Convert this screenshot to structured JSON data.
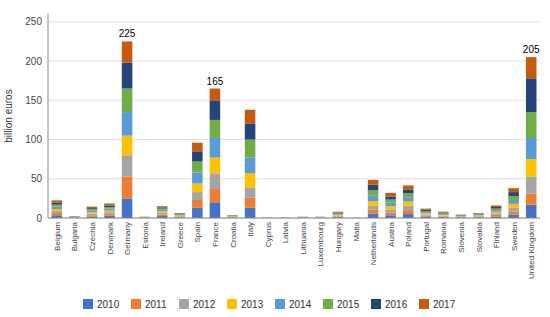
{
  "chart_data": {
    "type": "bar",
    "stacked": true,
    "grid": true,
    "legend": "bottom",
    "ylabel": "billion euros",
    "categories": [
      "Belgium",
      "Bulgaria",
      "Czechia",
      "Denmark",
      "Germany",
      "Estonia",
      "Ireland",
      "Greece",
      "Spain",
      "France",
      "Croatia",
      "Italy",
      "Cyprus",
      "Latvia",
      "Lithuania",
      "Luxembourg",
      "Hungary",
      "Malta",
      "Netherlands",
      "Austria",
      "Poland",
      "Portugal",
      "Romania",
      "Slovenia",
      "Slovakia",
      "Finland",
      "Sweden",
      "United Kingdom"
    ],
    "series": [
      {
        "name": "2010",
        "color": "#4472C4",
        "values": [
          3.5,
          0.3,
          2.0,
          3.0,
          25.0,
          0.2,
          2.5,
          0.8,
          13.0,
          20.0,
          0.4,
          13.0,
          0.1,
          0.1,
          0.2,
          0.2,
          1.0,
          0.05,
          5.5,
          3.5,
          5.0,
          1.5,
          1.0,
          0.5,
          0.8,
          2.0,
          4.5,
          17.0
        ]
      },
      {
        "name": "2011",
        "color": "#ED7D31",
        "values": [
          3.0,
          0.3,
          1.5,
          2.5,
          28.0,
          0.2,
          2.0,
          0.8,
          10.0,
          17.0,
          0.4,
          13.0,
          0.1,
          0.1,
          0.2,
          0.2,
          1.0,
          0.05,
          5.0,
          3.5,
          5.0,
          1.5,
          1.0,
          0.5,
          0.8,
          2.0,
          4.0,
          14.0
        ]
      },
      {
        "name": "2012",
        "color": "#A5A5A5",
        "values": [
          2.5,
          0.3,
          2.0,
          2.0,
          27.0,
          0.2,
          2.0,
          0.8,
          10.0,
          20.0,
          0.4,
          13.0,
          0.1,
          0.1,
          0.2,
          0.2,
          1.0,
          0.05,
          5.0,
          4.0,
          5.5,
          1.5,
          1.0,
          0.5,
          0.8,
          2.0,
          4.5,
          22.0
        ]
      },
      {
        "name": "2013",
        "color": "#FFC000",
        "values": [
          2.5,
          0.3,
          2.0,
          2.0,
          25.0,
          0.2,
          2.0,
          0.8,
          11.0,
          20.0,
          0.4,
          18.0,
          0.1,
          0.1,
          0.2,
          0.2,
          1.0,
          0.05,
          6.0,
          4.0,
          5.5,
          1.5,
          1.0,
          0.5,
          0.8,
          2.0,
          5.0,
          22.0
        ]
      },
      {
        "name": "2014",
        "color": "#5B9BD5",
        "values": [
          3.0,
          0.3,
          2.0,
          2.5,
          30.0,
          0.2,
          2.0,
          0.8,
          14.0,
          25.0,
          0.5,
          20.0,
          0.1,
          0.1,
          0.2,
          0.2,
          1.0,
          0.05,
          7.0,
          4.5,
          5.5,
          1.5,
          1.0,
          0.8,
          0.8,
          2.0,
          5.0,
          27.0
        ]
      },
      {
        "name": "2015",
        "color": "#70AD47",
        "values": [
          2.5,
          0.3,
          1.5,
          2.0,
          30.0,
          0.2,
          1.5,
          0.8,
          14.0,
          23.0,
          0.5,
          23.0,
          0.1,
          0.1,
          0.2,
          0.2,
          1.0,
          0.05,
          7.0,
          4.0,
          5.0,
          1.5,
          1.0,
          0.5,
          0.8,
          2.0,
          5.0,
          33.0
        ]
      },
      {
        "name": "2016",
        "color": "#264478",
        "values": [
          2.5,
          0.3,
          1.5,
          2.0,
          33.0,
          0.2,
          1.5,
          0.8,
          13.0,
          25.0,
          0.5,
          20.0,
          0.1,
          0.1,
          0.2,
          0.2,
          1.0,
          0.05,
          7.0,
          4.0,
          5.0,
          1.5,
          1.0,
          0.5,
          0.8,
          2.0,
          5.0,
          43.0
        ]
      },
      {
        "name": "2017",
        "color": "#C55A11",
        "values": [
          3.0,
          0.3,
          2.0,
          2.5,
          27.0,
          0.2,
          1.5,
          0.8,
          11.0,
          15.0,
          0.5,
          18.0,
          0.1,
          0.1,
          0.2,
          0.2,
          1.0,
          0.05,
          6.0,
          4.5,
          5.0,
          1.5,
          1.0,
          0.5,
          0.8,
          2.0,
          5.0,
          27.0
        ]
      }
    ],
    "annotations": [
      {
        "x": "Germany",
        "y": 225,
        "text": "225"
      },
      {
        "x": "France",
        "y": 165,
        "text": "165"
      },
      {
        "x": "United Kingdom",
        "y": 205,
        "text": "205"
      }
    ],
    "ylim": [
      0,
      260
    ],
    "yticks": [
      0,
      50,
      100,
      150,
      200,
      250
    ]
  }
}
